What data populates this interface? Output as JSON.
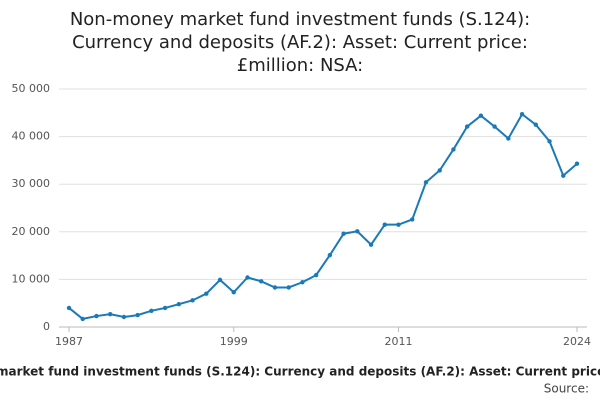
{
  "chart_data": {
    "type": "line",
    "title": "Non-money market fund investment funds (S.124): Currency and deposits (AF.2): Asset: Current price: £million: NSA:",
    "x": [
      1987,
      1988,
      1989,
      1990,
      1991,
      1992,
      1993,
      1994,
      1995,
      1996,
      1997,
      1998,
      1999,
      2000,
      2001,
      2002,
      2003,
      2004,
      2005,
      2006,
      2007,
      2008,
      2009,
      2010,
      2011,
      2012,
      2013,
      2014,
      2015,
      2016,
      2017,
      2018,
      2019,
      2020,
      2021,
      2022,
      2023,
      2024
    ],
    "series": [
      {
        "name": "Non-money market fund investment funds (S.124): Currency and deposits (AF.2): Asset: Current price: £million: NSA",
        "color": "#1a7ab8",
        "values": [
          4000,
          1700,
          2300,
          2700,
          2100,
          2500,
          3400,
          4000,
          4800,
          5600,
          7000,
          9900,
          7300,
          10400,
          9600,
          8300,
          8300,
          9400,
          10900,
          15100,
          19600,
          20100,
          17300,
          21500,
          21500,
          22600,
          30400,
          32900,
          37300,
          42100,
          44400,
          42100,
          39600,
          44700,
          42500,
          39000,
          31800,
          34300
        ]
      }
    ],
    "xlim": [
      1987,
      2024
    ],
    "xticks": [
      1987,
      1999,
      2011,
      2024
    ],
    "ylim": [
      0,
      50000
    ],
    "yticks": [
      0,
      {
        "value": 10000,
        "label": "10 000"
      },
      {
        "value": 20000,
        "label": "20 000"
      },
      {
        "value": 30000,
        "label": "30 000"
      },
      {
        "value": 40000,
        "label": "40 000"
      },
      {
        "value": 50000,
        "label": "50 000"
      }
    ],
    "grid": true,
    "source": "Source:"
  }
}
